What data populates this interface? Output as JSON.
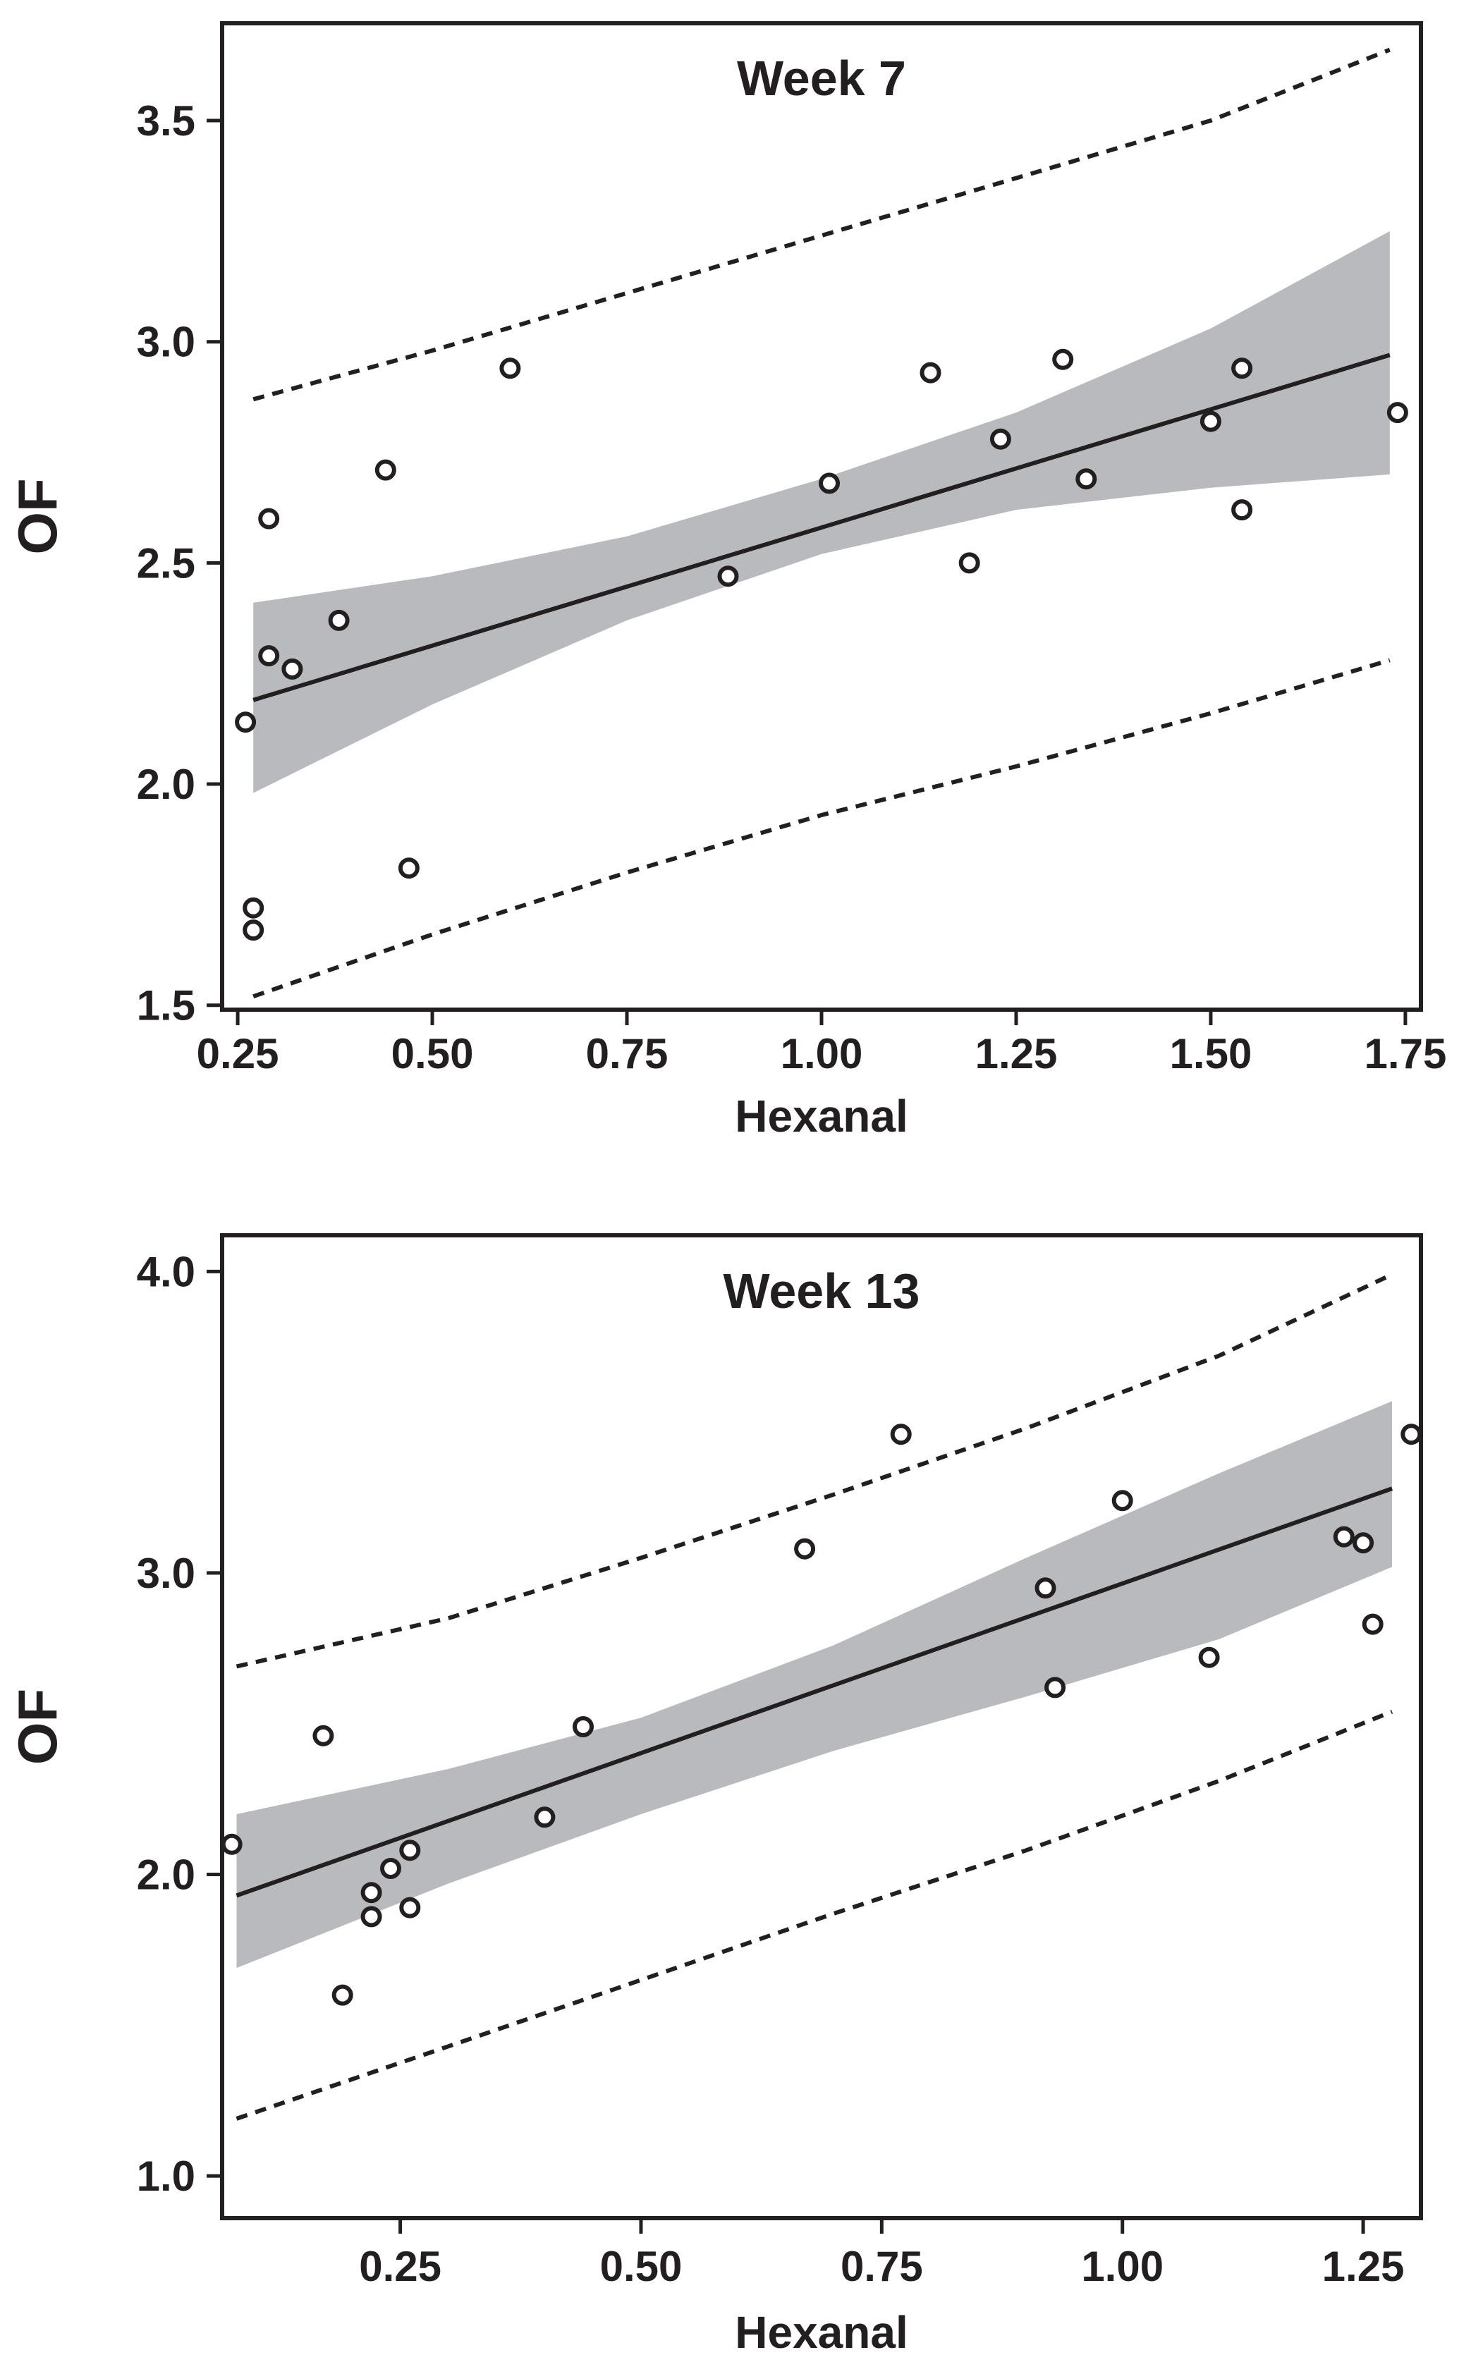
{
  "colors": {
    "ink": "#231f20",
    "band": "#b9babd",
    "background": "#ffffff"
  },
  "chart_data": [
    {
      "type": "scatter",
      "title": "Week 7",
      "xlabel": "Hexanal",
      "ylabel": "OF",
      "xlim": [
        0.23,
        1.77
      ],
      "ylim": [
        1.49,
        3.72
      ],
      "xticks": [
        0.25,
        0.5,
        0.75,
        1.0,
        1.25,
        1.5,
        1.75
      ],
      "xtick_labels": [
        "0.25",
        "0.50",
        "0.75",
        "1.00",
        "1.25",
        "1.50",
        "1.75"
      ],
      "yticks": [
        1.5,
        2.0,
        2.5,
        3.0,
        3.5
      ],
      "ytick_labels": [
        "1.5",
        "2.0",
        "2.5",
        "3.0",
        "3.5"
      ],
      "points": [
        {
          "x": 0.26,
          "y": 2.14
        },
        {
          "x": 0.27,
          "y": 1.72
        },
        {
          "x": 0.27,
          "y": 1.67
        },
        {
          "x": 0.29,
          "y": 2.6
        },
        {
          "x": 0.29,
          "y": 2.29
        },
        {
          "x": 0.32,
          "y": 2.26
        },
        {
          "x": 0.38,
          "y": 2.37
        },
        {
          "x": 0.44,
          "y": 2.71
        },
        {
          "x": 0.47,
          "y": 1.81
        },
        {
          "x": 0.6,
          "y": 2.94
        },
        {
          "x": 0.88,
          "y": 2.47
        },
        {
          "x": 1.01,
          "y": 2.68
        },
        {
          "x": 1.14,
          "y": 2.93
        },
        {
          "x": 1.19,
          "y": 2.5
        },
        {
          "x": 1.23,
          "y": 2.78
        },
        {
          "x": 1.31,
          "y": 2.96
        },
        {
          "x": 1.34,
          "y": 2.69
        },
        {
          "x": 1.5,
          "y": 2.82
        },
        {
          "x": 1.54,
          "y": 2.94
        },
        {
          "x": 1.54,
          "y": 2.62
        },
        {
          "x": 1.74,
          "y": 2.84
        }
      ],
      "fit": {
        "x": [
          0.27,
          1.73
        ],
        "y": [
          2.19,
          2.97
        ]
      },
      "confidence_band": {
        "x": [
          0.27,
          0.5,
          0.75,
          1.0,
          1.25,
          1.5,
          1.73
        ],
        "upper": [
          2.41,
          2.47,
          2.56,
          2.69,
          2.84,
          3.03,
          3.25
        ],
        "lower": [
          1.98,
          2.18,
          2.37,
          2.52,
          2.62,
          2.67,
          2.7
        ]
      },
      "prediction_upper": {
        "x": [
          0.27,
          0.5,
          0.75,
          1.0,
          1.25,
          1.5,
          1.73
        ],
        "y": [
          2.87,
          2.98,
          3.11,
          3.24,
          3.37,
          3.5,
          3.66
        ]
      },
      "prediction_lower": {
        "x": [
          0.27,
          0.5,
          0.75,
          1.0,
          1.25,
          1.5,
          1.73
        ],
        "y": [
          1.52,
          1.66,
          1.8,
          1.93,
          2.04,
          2.16,
          2.28
        ]
      }
    },
    {
      "type": "scatter",
      "title": "Week 13",
      "xlabel": "Hexanal",
      "ylabel": "OF",
      "xlim": [
        0.065,
        1.31
      ],
      "ylim": [
        0.86,
        4.12
      ],
      "xticks": [
        0.25,
        0.5,
        0.75,
        1.0,
        1.25
      ],
      "xtick_labels": [
        "0.25",
        "0.50",
        "0.75",
        "1.00",
        "1.25"
      ],
      "yticks": [
        1.0,
        2.0,
        3.0,
        4.0
      ],
      "ytick_labels": [
        "1.0",
        "2.0",
        "3.0",
        "4.0"
      ],
      "points": [
        {
          "x": 0.075,
          "y": 2.1
        },
        {
          "x": 0.17,
          "y": 2.46
        },
        {
          "x": 0.19,
          "y": 1.6
        },
        {
          "x": 0.22,
          "y": 1.94
        },
        {
          "x": 0.22,
          "y": 1.86
        },
        {
          "x": 0.24,
          "y": 2.02
        },
        {
          "x": 0.26,
          "y": 2.08
        },
        {
          "x": 0.26,
          "y": 1.89
        },
        {
          "x": 0.4,
          "y": 2.19
        },
        {
          "x": 0.44,
          "y": 2.49
        },
        {
          "x": 0.67,
          "y": 3.08
        },
        {
          "x": 0.77,
          "y": 3.46
        },
        {
          "x": 0.92,
          "y": 2.95
        },
        {
          "x": 0.93,
          "y": 2.62
        },
        {
          "x": 1.0,
          "y": 3.24
        },
        {
          "x": 1.09,
          "y": 2.72
        },
        {
          "x": 1.23,
          "y": 3.12
        },
        {
          "x": 1.25,
          "y": 3.1
        },
        {
          "x": 1.26,
          "y": 2.83
        },
        {
          "x": 1.3,
          "y": 3.46
        }
      ],
      "fit": {
        "x": [
          0.08,
          1.28
        ],
        "y": [
          1.93,
          3.28
        ]
      },
      "confidence_band": {
        "x": [
          0.08,
          0.3,
          0.5,
          0.7,
          0.9,
          1.1,
          1.28
        ],
        "upper": [
          2.2,
          2.35,
          2.52,
          2.76,
          3.05,
          3.33,
          3.57
        ],
        "lower": [
          1.69,
          1.97,
          2.2,
          2.41,
          2.59,
          2.78,
          3.02
        ]
      },
      "prediction_upper": {
        "x": [
          0.08,
          0.3,
          0.5,
          0.7,
          0.9,
          1.1,
          1.28
        ],
        "y": [
          2.69,
          2.85,
          3.05,
          3.26,
          3.48,
          3.72,
          3.99
        ]
      },
      "prediction_lower": {
        "x": [
          0.08,
          0.3,
          0.5,
          0.7,
          0.9,
          1.1,
          1.28
        ],
        "y": [
          1.19,
          1.43,
          1.65,
          1.87,
          2.08,
          2.31,
          2.54
        ]
      }
    }
  ]
}
